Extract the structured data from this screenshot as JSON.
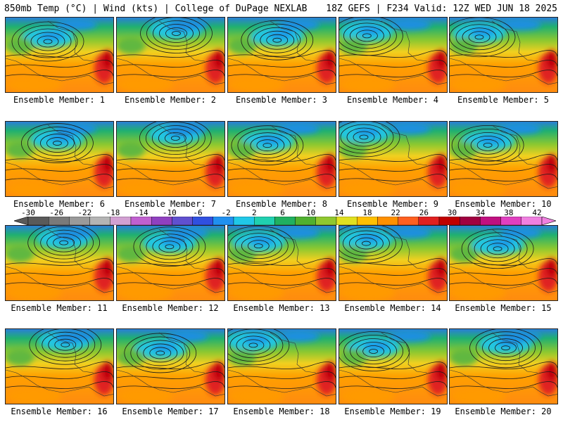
{
  "header": {
    "left_title": "850mb Temp (°C) | Wind (kts) | College of DuPage NEXLAB",
    "right_title": "18Z GEFS | F234 Valid: 12Z WED JUN 18 2025"
  },
  "members": [
    "Ensemble Member: 1",
    "Ensemble Member: 2",
    "Ensemble Member: 3",
    "Ensemble Member: 4",
    "Ensemble Member: 5",
    "Ensemble Member: 6",
    "Ensemble Member: 7",
    "Ensemble Member: 8",
    "Ensemble Member: 9",
    "Ensemble Member: 10",
    "Ensemble Member: 11",
    "Ensemble Member: 12",
    "Ensemble Member: 13",
    "Ensemble Member: 14",
    "Ensemble Member: 15",
    "Ensemble Member: 16",
    "Ensemble Member: 17",
    "Ensemble Member: 18",
    "Ensemble Member: 19",
    "Ensemble Member: 20"
  ],
  "colorbar": {
    "labels": [
      "-30",
      "-26",
      "-22",
      "-18",
      "-14",
      "-10",
      "-6",
      "-2",
      "2",
      "6",
      "10",
      "14",
      "18",
      "22",
      "26",
      "30",
      "34",
      "38",
      "42"
    ],
    "colors": [
      "#5a5a5a",
      "#7a7a7a",
      "#9a9a9a",
      "#b4b4b4",
      "#d2a0d2",
      "#c060d0",
      "#9040c0",
      "#6050d0",
      "#3050e0",
      "#2090f0",
      "#20c8e8",
      "#20d0b0",
      "#20b060",
      "#50b030",
      "#90c830",
      "#e0e020",
      "#ffc000",
      "#ff9000",
      "#ff6020",
      "#e02020",
      "#c00000",
      "#a00040",
      "#c01080",
      "#e040c0",
      "#f080e0"
    ]
  }
}
